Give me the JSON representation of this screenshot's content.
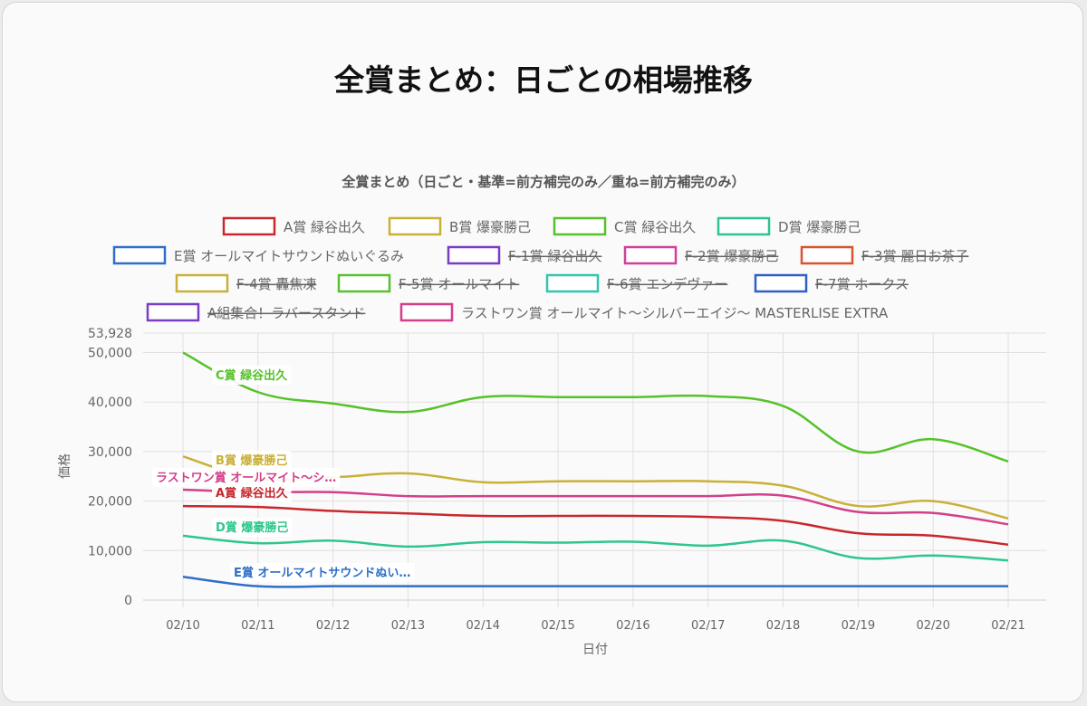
{
  "page_title": "全賞まとめ：日ごとの相場推移",
  "chart_data": {
    "type": "line",
    "title": "全賞まとめ（日ごと・基準=前方補完のみ／重ね=前方補完のみ）",
    "xlabel": "日付",
    "ylabel": "価格",
    "ylim": [
      0,
      53928
    ],
    "y_ticks": [
      0,
      10000,
      20000,
      30000,
      40000,
      50000,
      53928
    ],
    "y_tick_labels": [
      "0",
      "10,000",
      "20,000",
      "30,000",
      "40,000",
      "50,000",
      "53,928"
    ],
    "categories": [
      "02/10",
      "02/11",
      "02/12",
      "02/13",
      "02/14",
      "02/15",
      "02/16",
      "02/17",
      "02/18",
      "02/19",
      "02/20",
      "02/21"
    ],
    "grid": true,
    "legend_position": "top",
    "series": [
      {
        "name": "A賞 緑谷出久",
        "color": "#c8282d",
        "hidden": false,
        "values": [
          19000,
          18800,
          18000,
          17500,
          17000,
          17000,
          17000,
          16800,
          16000,
          13500,
          13000,
          11200
        ],
        "end_label": "A賞 緑谷出久"
      },
      {
        "name": "B賞 爆豪勝己",
        "color": "#c9b037",
        "hidden": false,
        "values": [
          29000,
          24500,
          24800,
          25600,
          23800,
          24000,
          24000,
          24000,
          23100,
          19000,
          20000,
          16500
        ],
        "end_label": "B賞 爆豪勝己"
      },
      {
        "name": "C賞 緑谷出久",
        "color": "#56c22a",
        "hidden": false,
        "values": [
          50000,
          42000,
          39700,
          38000,
          41000,
          41000,
          41000,
          41200,
          39200,
          30000,
          32500,
          28000
        ],
        "end_label": "C賞 緑谷出久"
      },
      {
        "name": "D賞 爆豪勝己",
        "color": "#2ec68c",
        "hidden": false,
        "values": [
          13000,
          11500,
          12000,
          10800,
          11700,
          11600,
          11800,
          11000,
          12000,
          8500,
          9000,
          8000
        ],
        "end_label": "D賞 爆豪勝己"
      },
      {
        "name": "E賞 オールマイトサウンドぬいぐるみ",
        "color": "#2e6fc8",
        "hidden": false,
        "values": [
          4700,
          2800,
          2800,
          2800,
          2800,
          2800,
          2800,
          2800,
          2800,
          2800,
          2800,
          2800
        ],
        "end_label": "E賞 オールマイトサウンドぬい…"
      },
      {
        "name": "F-1賞 緑谷出久",
        "color": "#7b3cc6",
        "hidden": true
      },
      {
        "name": "F-2賞 爆豪勝己",
        "color": "#d23f9e",
        "hidden": true
      },
      {
        "name": "F-3賞 麗日お茶子",
        "color": "#d9542c",
        "hidden": true
      },
      {
        "name": "F-4賞 轟焦凍",
        "color": "#c9b037",
        "hidden": true
      },
      {
        "name": "F-5賞 オールマイト",
        "color": "#56c22a",
        "hidden": true
      },
      {
        "name": "F-6賞 エンデヴァー",
        "color": "#2ec6b0",
        "hidden": true
      },
      {
        "name": "F-7賞 ホークス",
        "color": "#2e5ec8",
        "hidden": true
      },
      {
        "name": "A組集合！ラバースタンド",
        "color": "#7b3cc6",
        "hidden": true
      },
      {
        "name": "ラストワン賞 オールマイト～シルバーエイジ～ MASTERLISE EXTRA",
        "color": "#d23f8a",
        "hidden": false,
        "values": [
          22300,
          21800,
          21800,
          21000,
          21000,
          21000,
          21000,
          21000,
          21100,
          17800,
          17600,
          15300
        ],
        "end_label": "ラストワン賞 オールマイト～シ…"
      }
    ]
  }
}
